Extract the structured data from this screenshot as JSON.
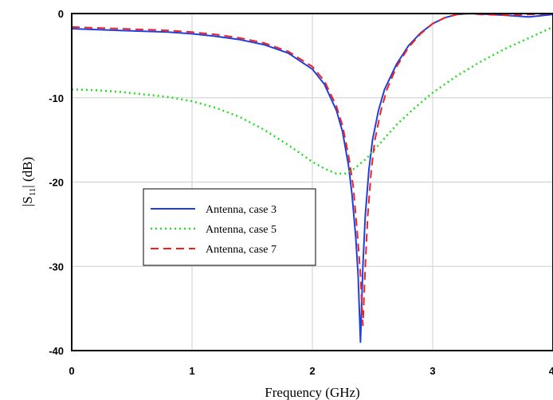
{
  "chart_data": {
    "type": "line",
    "xlabel": "Frequency (GHz)",
    "ylabel_main": "|S",
    "ylabel_sub": "11",
    "ylabel_end": "| (dB)",
    "xlim": [
      0,
      4
    ],
    "ylim": [
      -40,
      0
    ],
    "x_ticks": [
      "0",
      "1",
      "2",
      "3",
      "4"
    ],
    "y_ticks": [
      "0",
      "-10",
      "-20",
      "-30",
      "-40"
    ],
    "grid": true,
    "legend_position": "lower-left",
    "series": [
      {
        "name": "Antenna, case 3",
        "color": "#1f3fe0",
        "dash": "solid",
        "x": [
          0,
          0.2,
          0.4,
          0.6,
          0.8,
          1.0,
          1.2,
          1.4,
          1.6,
          1.8,
          2.0,
          2.1,
          2.2,
          2.25,
          2.3,
          2.33,
          2.36,
          2.38,
          2.4,
          2.42,
          2.44,
          2.47,
          2.5,
          2.55,
          2.6,
          2.7,
          2.8,
          2.9,
          3.0,
          3.1,
          3.2,
          3.3,
          3.4,
          3.6,
          3.8,
          4.0
        ],
        "y": [
          -1.8,
          -1.9,
          -2.0,
          -2.1,
          -2.2,
          -2.4,
          -2.7,
          -3.1,
          -3.7,
          -4.7,
          -6.6,
          -8.4,
          -11.5,
          -14.0,
          -18.0,
          -21.5,
          -26.5,
          -31.0,
          -39.0,
          -30.0,
          -24.0,
          -18.5,
          -15.0,
          -11.5,
          -9.0,
          -6.0,
          -3.8,
          -2.3,
          -1.2,
          -0.5,
          -0.1,
          0.0,
          -0.05,
          -0.2,
          -0.4,
          -0.1
        ]
      },
      {
        "name": "Antenna, case 5",
        "color": "#22dd22",
        "dash": "dotted",
        "x": [
          0,
          0.2,
          0.4,
          0.6,
          0.8,
          1.0,
          1.2,
          1.4,
          1.6,
          1.8,
          1.9,
          2.0,
          2.1,
          2.2,
          2.27,
          2.35,
          2.45,
          2.55,
          2.7,
          2.85,
          3.0,
          3.2,
          3.4,
          3.6,
          3.8,
          4.0
        ],
        "y": [
          -9.0,
          -9.1,
          -9.3,
          -9.6,
          -9.9,
          -10.4,
          -11.2,
          -12.3,
          -13.8,
          -15.6,
          -16.6,
          -17.6,
          -18.4,
          -19.0,
          -19.0,
          -18.4,
          -17.2,
          -15.6,
          -13.2,
          -11.2,
          -9.4,
          -7.4,
          -5.7,
          -4.2,
          -2.9,
          -1.6
        ]
      },
      {
        "name": "Antenna, case 7",
        "color": "#ee2222",
        "dash": "dashed",
        "x": [
          0,
          0.2,
          0.4,
          0.6,
          0.8,
          1.0,
          1.2,
          1.4,
          1.6,
          1.8,
          2.0,
          2.1,
          2.2,
          2.25,
          2.3,
          2.34,
          2.37,
          2.4,
          2.42,
          2.44,
          2.46,
          2.49,
          2.52,
          2.57,
          2.62,
          2.7,
          2.8,
          2.9,
          3.0,
          3.1,
          3.2,
          3.3,
          3.4,
          3.6,
          3.8,
          4.0
        ],
        "y": [
          -1.6,
          -1.7,
          -1.8,
          -1.9,
          -2.0,
          -2.2,
          -2.5,
          -2.9,
          -3.5,
          -4.5,
          -6.3,
          -8.0,
          -11.0,
          -13.3,
          -16.8,
          -20.5,
          -25.5,
          -31.0,
          -37.0,
          -30.0,
          -24.0,
          -18.5,
          -15.0,
          -11.5,
          -9.0,
          -6.3,
          -4.0,
          -2.4,
          -1.2,
          -0.5,
          -0.1,
          0.0,
          -0.1,
          -0.2,
          -0.1,
          0.0
        ]
      }
    ]
  }
}
